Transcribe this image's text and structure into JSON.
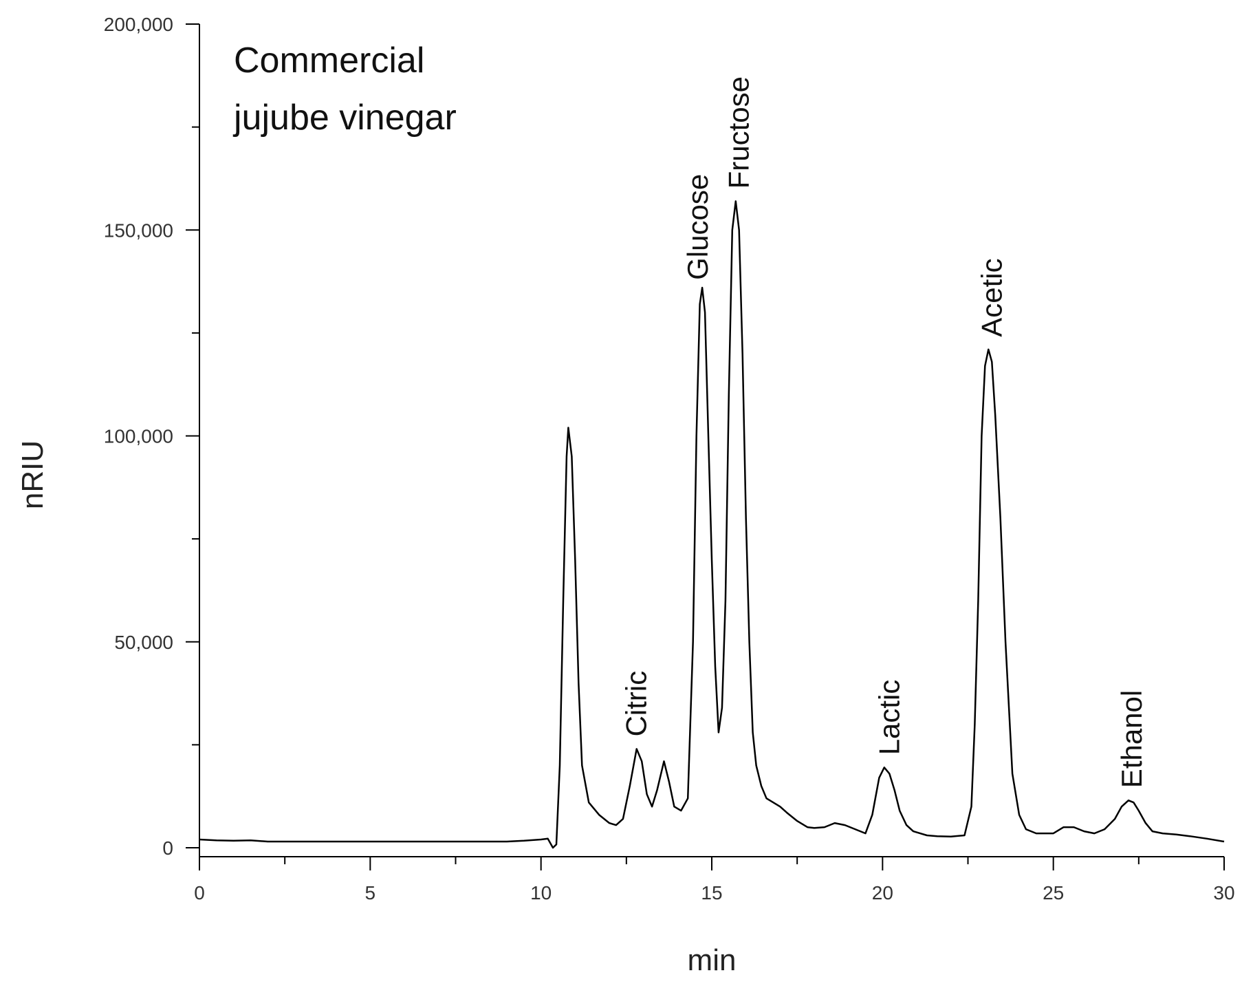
{
  "chart_data": {
    "type": "line",
    "title": "",
    "annotation": [
      "Commercial",
      "jujube vinegar"
    ],
    "xlabel": "min",
    "ylabel": "nRIU",
    "xlim": [
      0,
      30
    ],
    "ylim": [
      -2000,
      200000
    ],
    "xticks": [
      0,
      5,
      10,
      15,
      20,
      25,
      30
    ],
    "xtick_labels": [
      "0",
      "5",
      "10",
      "15",
      "20",
      "25",
      "30"
    ],
    "yticks": [
      0,
      50000,
      100000,
      150000,
      200000
    ],
    "ytick_labels": [
      "0",
      "50,000",
      "100,000",
      "150,000",
      "200,000"
    ],
    "grid": false,
    "line_color": "#000000",
    "series": [
      {
        "x": [
          0,
          0.5,
          1,
          1.5,
          2,
          3,
          4,
          5,
          6,
          7,
          8,
          9,
          9.5,
          10,
          10.2,
          10.35,
          10.45,
          10.55,
          10.65,
          10.75,
          10.8,
          10.9,
          11.0,
          11.1,
          11.2,
          11.4,
          11.7,
          12.0,
          12.2,
          12.4,
          12.6,
          12.8,
          12.95,
          13.1,
          13.25,
          13.4,
          13.6,
          13.75,
          13.9,
          14.1,
          14.3,
          14.45,
          14.55,
          14.65,
          14.72,
          14.8,
          14.9,
          15.0,
          15.1,
          15.2,
          15.3,
          15.4,
          15.5,
          15.6,
          15.7,
          15.8,
          15.9,
          16.0,
          16.1,
          16.2,
          16.3,
          16.45,
          16.6,
          16.8,
          17.0,
          17.2,
          17.5,
          17.8,
          18.0,
          18.3,
          18.6,
          18.9,
          19.2,
          19.5,
          19.7,
          19.9,
          20.05,
          20.2,
          20.35,
          20.5,
          20.7,
          20.9,
          21.1,
          21.3,
          21.6,
          22.0,
          22.4,
          22.6,
          22.7,
          22.8,
          22.9,
          23.0,
          23.1,
          23.2,
          23.3,
          23.45,
          23.6,
          23.8,
          24.0,
          24.2,
          24.5,
          25.0,
          25.3,
          25.6,
          25.9,
          26.2,
          26.5,
          26.8,
          27.0,
          27.2,
          27.35,
          27.5,
          27.7,
          27.9,
          28.2,
          28.6,
          29.0,
          29.5,
          30.0
        ],
        "values": [
          2000,
          1800,
          1700,
          1800,
          1500,
          1500,
          1500,
          1500,
          1500,
          1500,
          1500,
          1500,
          1700,
          2000,
          2200,
          0,
          800,
          20000,
          60000,
          95000,
          102000,
          95000,
          70000,
          40000,
          20000,
          11000,
          8000,
          6000,
          5500,
          7000,
          15000,
          24000,
          21000,
          13000,
          10000,
          14000,
          21000,
          16000,
          10000,
          9000,
          12000,
          50000,
          100000,
          132000,
          136000,
          130000,
          100000,
          70000,
          44000,
          28000,
          34000,
          60000,
          110000,
          150000,
          157000,
          150000,
          120000,
          80000,
          50000,
          28000,
          20000,
          15000,
          12000,
          11000,
          10000,
          8500,
          6500,
          5000,
          4800,
          5000,
          6000,
          5500,
          4500,
          3500,
          8000,
          17000,
          19500,
          18000,
          14000,
          9000,
          5500,
          4000,
          3500,
          3000,
          2800,
          2700,
          3000,
          10000,
          30000,
          60000,
          100000,
          117000,
          121000,
          118000,
          105000,
          80000,
          50000,
          18000,
          8000,
          4500,
          3500,
          3500,
          5000,
          5000,
          4000,
          3500,
          4500,
          7000,
          10000,
          11500,
          11000,
          9000,
          6000,
          4000,
          3500,
          3200,
          2800,
          2200,
          1500
        ]
      }
    ],
    "peak_labels": [
      {
        "text": "Citric",
        "x": 12.8
      },
      {
        "text": "Glucose",
        "x": 14.6
      },
      {
        "text": "Fructose",
        "x": 15.8
      },
      {
        "text": "Lactic",
        "x": 20.2
      },
      {
        "text": "Acetic",
        "x": 23.2
      },
      {
        "text": "Ethanol",
        "x": 27.3
      }
    ]
  }
}
